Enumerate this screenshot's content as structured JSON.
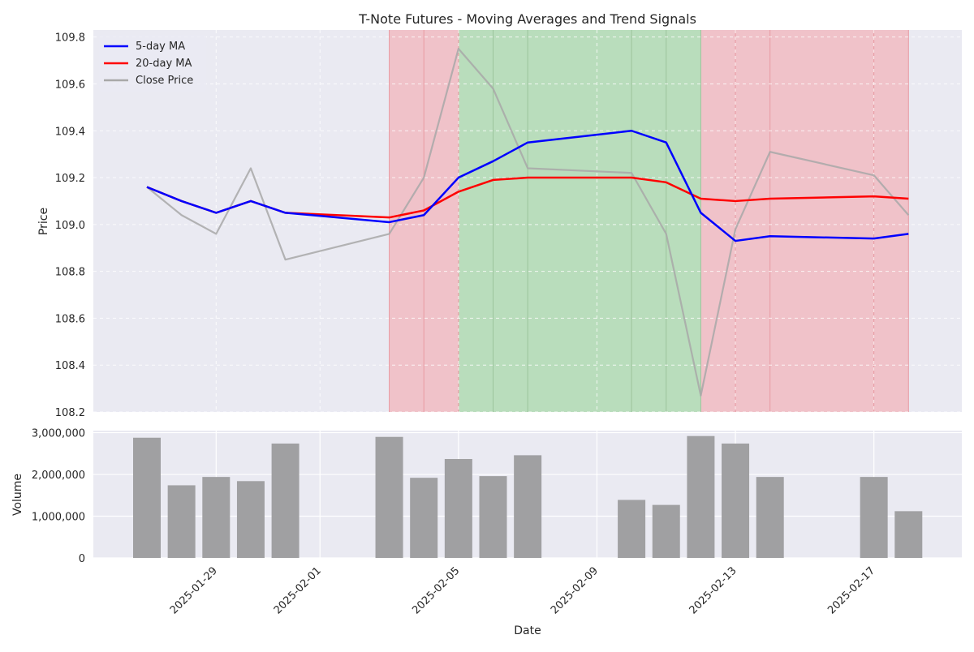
{
  "chart_data": {
    "type": "line",
    "title": "T-Note Futures - Moving Averages and Trend Signals",
    "xlabel": "Date",
    "colors": {
      "ma5": "#0000ff",
      "ma20": "#ff0000",
      "close": "#a8a8a8",
      "bullish": "#8fd18f",
      "bearish": "#f4a0a8",
      "volume": "#a0a0a2",
      "plot_bg": "#eaeaf2"
    },
    "dates": [
      "2025-01-27",
      "2025-01-28",
      "2025-01-29",
      "2025-01-30",
      "2025-01-31",
      "2025-02-03",
      "2025-02-04",
      "2025-02-05",
      "2025-02-06",
      "2025-02-07",
      "2025-02-10",
      "2025-02-11",
      "2025-02-12",
      "2025-02-13",
      "2025-02-14",
      "2025-02-17",
      "2025-02-18"
    ],
    "price_panel": {
      "ylabel": "Price",
      "ylim": [
        108.2,
        109.83
      ],
      "yticks": [
        "108.2",
        "108.4",
        "108.6",
        "108.8",
        "109.0",
        "109.2",
        "109.4",
        "109.6",
        "109.8"
      ],
      "series": [
        {
          "key": "ma5",
          "name": "5-day MA",
          "values": [
            109.16,
            109.1,
            109.05,
            109.1,
            109.05,
            109.01,
            109.04,
            109.2,
            109.27,
            109.35,
            109.4,
            109.35,
            109.05,
            108.93,
            108.95,
            108.94,
            108.96
          ]
        },
        {
          "key": "ma20",
          "name": "20-day MA",
          "values": [
            109.16,
            109.1,
            109.05,
            109.1,
            109.05,
            109.03,
            109.06,
            109.14,
            109.19,
            109.2,
            109.2,
            109.18,
            109.11,
            109.1,
            109.11,
            109.12,
            109.11
          ]
        },
        {
          "key": "close",
          "name": "Close Price",
          "values": [
            109.16,
            109.04,
            108.96,
            109.24,
            108.85,
            108.96,
            109.2,
            109.75,
            109.58,
            109.24,
            109.22,
            108.96,
            108.27,
            108.98,
            109.31,
            109.21,
            109.04
          ]
        }
      ],
      "signal_regions": [
        {
          "signal": "bearish",
          "start": "2025-02-03",
          "end": "2025-02-05"
        },
        {
          "signal": "bullish",
          "start": "2025-02-05",
          "end": "2025-02-12"
        },
        {
          "signal": "bearish",
          "start": "2025-02-12",
          "end": "2025-02-18"
        }
      ]
    },
    "volume_panel": {
      "ylabel": "Volume",
      "ylim": [
        0,
        3050000
      ],
      "yticks": [
        "0",
        "1,000,000",
        "2,000,000",
        "3,000,000"
      ],
      "values": [
        2880000,
        1740000,
        1940000,
        1840000,
        2740000,
        2900000,
        1920000,
        2370000,
        1960000,
        2460000,
        1390000,
        1270000,
        2920000,
        2740000,
        1940000,
        1940000,
        1120000
      ]
    },
    "xticks": [
      "2025-01-29",
      "2025-02-01",
      "2025-02-05",
      "2025-02-09",
      "2025-02-13",
      "2025-02-17"
    ],
    "legend_position": "top-left"
  }
}
